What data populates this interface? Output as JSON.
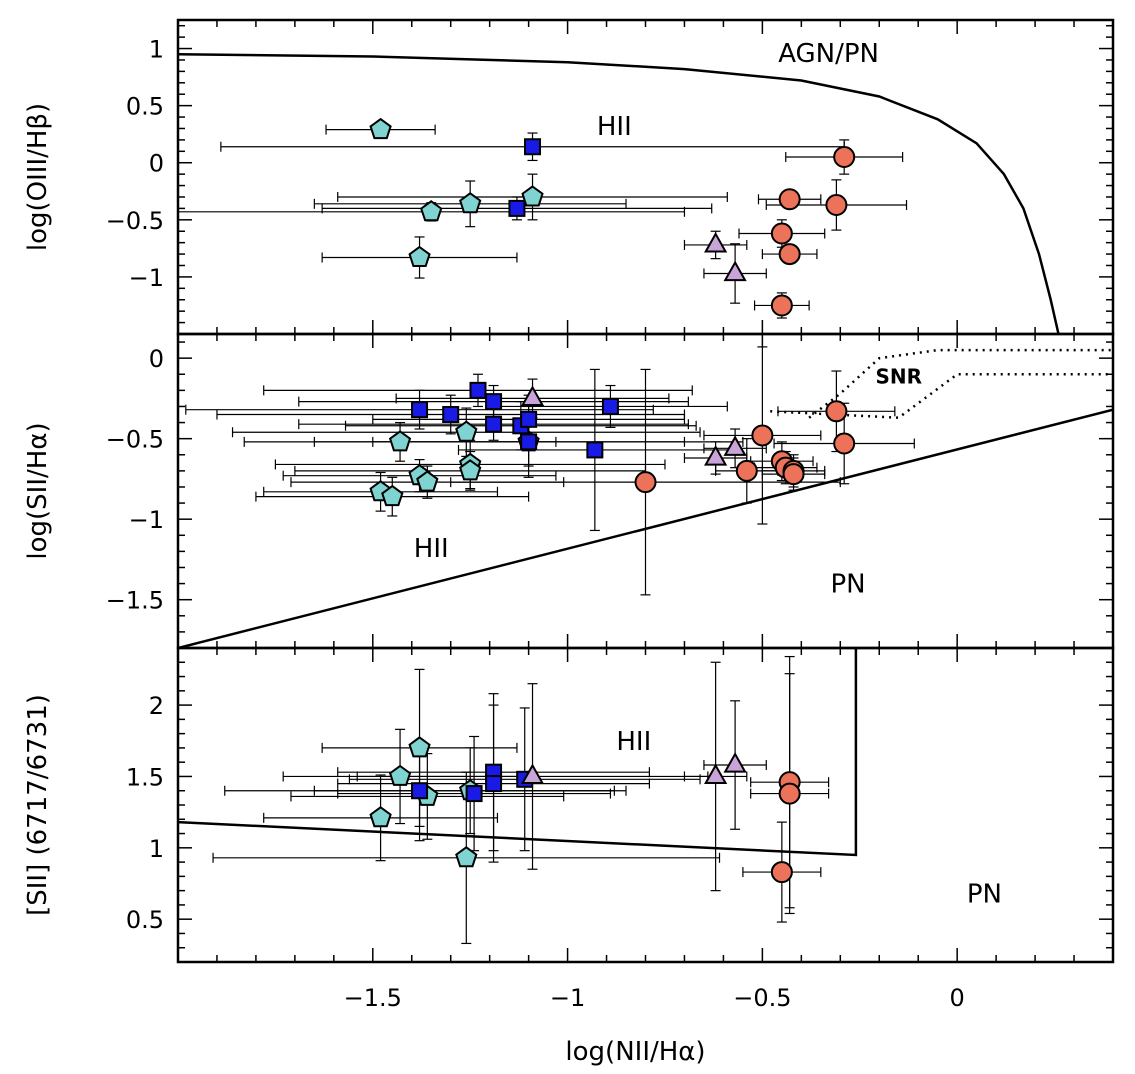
{
  "colors": {
    "hii_pentagon": "#7fd3d1",
    "square": "#1a1ae6",
    "triangle": "#c9a4d9",
    "circle": "#ec735a",
    "line": "#000000"
  },
  "chart_data": [
    {
      "type": "scatter",
      "panel": "top",
      "xlabel": "",
      "ylabel": "log(OIII/Hβ)",
      "xlim": [
        -2.0,
        0.4
      ],
      "ylim": [
        -1.5,
        1.25
      ],
      "x_ticks": [],
      "y_ticks": [
        "1",
        "0.5",
        "0",
        "−0.5",
        "−1"
      ],
      "y_tick_values": [
        1,
        0.5,
        0,
        -0.5,
        -1
      ],
      "annotations": [
        {
          "text": "AGN/PN",
          "x": -0.33,
          "y": 0.96
        },
        {
          "text": "HII",
          "x": -0.88,
          "y": 0.32
        }
      ],
      "curve": {
        "name": "",
        "style": "solid",
        "points": [
          [
            -2.0,
            0.95
          ],
          [
            -1.5,
            0.93
          ],
          [
            -1.0,
            0.88
          ],
          [
            -0.7,
            0.82
          ],
          [
            -0.4,
            0.72
          ],
          [
            -0.2,
            0.58
          ],
          [
            -0.05,
            0.38
          ],
          [
            0.05,
            0.17
          ],
          [
            0.12,
            -0.1
          ],
          [
            0.17,
            -0.4
          ],
          [
            0.21,
            -0.8
          ],
          [
            0.24,
            -1.2
          ],
          [
            0.26,
            -1.5
          ]
        ]
      },
      "series": [
        {
          "marker": "pentagon",
          "color": "#7fd3d1",
          "points": [
            {
              "x": -1.48,
              "y": 0.29,
              "xerr": 0.14,
              "yerr": 0.03
            },
            {
              "x": -1.38,
              "y": -0.83,
              "xerr": 0.25,
              "yerr": 0.18
            },
            {
              "x": -1.35,
              "y": -0.43,
              "xerr": 0.65,
              "yerr": 0.08
            },
            {
              "x": -1.25,
              "y": -0.36,
              "xerr": 0.4,
              "yerr": 0.2
            },
            {
              "x": -1.09,
              "y": -0.3,
              "xerr": 0.5,
              "yerr": 0.2
            }
          ]
        },
        {
          "marker": "square",
          "color": "#1a1ae6",
          "points": [
            {
              "x": -1.09,
              "y": 0.14,
              "xerr": 0.8,
              "yerr": 0.12
            },
            {
              "x": -1.13,
              "y": -0.4,
              "xerr": 0.5,
              "yerr": 0.1
            }
          ]
        },
        {
          "marker": "triangle",
          "color": "#c9a4d9",
          "points": [
            {
              "x": -0.62,
              "y": -0.72,
              "xerr": 0.08,
              "yerr": 0.12
            },
            {
              "x": -0.57,
              "y": -0.97,
              "xerr": 0.08,
              "yerr": 0.26
            }
          ]
        },
        {
          "marker": "circle",
          "color": "#ec735a",
          "points": [
            {
              "x": -0.29,
              "y": 0.05,
              "xerr": 0.15,
              "yerr": 0.15
            },
            {
              "x": -0.43,
              "y": -0.32,
              "xerr": 0.08,
              "yerr": 0.08
            },
            {
              "x": -0.31,
              "y": -0.37,
              "xerr": 0.18,
              "yerr": 0.22
            },
            {
              "x": -0.45,
              "y": -0.62,
              "xerr": 0.11,
              "yerr": 0.12
            },
            {
              "x": -0.43,
              "y": -0.8,
              "xerr": 0.07,
              "yerr": 0.07
            },
            {
              "x": -0.45,
              "y": -1.25,
              "xerr": 0.07,
              "yerr": 0.11
            }
          ]
        }
      ]
    },
    {
      "type": "scatter",
      "panel": "middle",
      "xlabel": "",
      "ylabel": "log(SII/Hα)",
      "xlim": [
        -2.0,
        0.4
      ],
      "ylim": [
        -1.8,
        0.15
      ],
      "x_ticks": [],
      "y_ticks": [
        "0",
        "−0.5",
        "−1",
        "−1.5"
      ],
      "y_tick_values": [
        0,
        -0.5,
        -1,
        -1.5
      ],
      "annotations": [
        {
          "text": "SNR",
          "x": -0.15,
          "y": -0.1
        },
        {
          "text": "HII",
          "x": -1.35,
          "y": -1.18
        },
        {
          "text": "PN",
          "x": -0.28,
          "y": -1.4
        }
      ],
      "lines": [
        {
          "style": "solid",
          "points": [
            [
              -2.0,
              -1.8
            ],
            [
              0.4,
              -0.32
            ]
          ]
        },
        {
          "style": "dotted",
          "points": [
            [
              -0.38,
              -0.37
            ],
            [
              -0.3,
              -0.22
            ],
            [
              -0.2,
              0.0
            ],
            [
              -0.05,
              0.05
            ],
            [
              0.4,
              0.05
            ]
          ]
        },
        {
          "style": "dotted",
          "points": [
            [
              -0.48,
              -0.33
            ],
            [
              -0.15,
              -0.37
            ],
            [
              0.0,
              -0.1
            ],
            [
              0.4,
              -0.1
            ]
          ]
        }
      ],
      "series": [
        {
          "marker": "pentagon",
          "color": "#7fd3d1",
          "points": [
            {
              "x": -1.43,
              "y": -0.52,
              "xerr": 0.4,
              "yerr": 0.12
            },
            {
              "x": -1.26,
              "y": -0.46,
              "xerr": 0.6,
              "yerr": 0.15
            },
            {
              "x": -1.25,
              "y": -0.66,
              "xerr": 0.5,
              "yerr": 0.15
            },
            {
              "x": -1.25,
              "y": -0.7,
              "xerr": 0.45,
              "yerr": 0.12
            },
            {
              "x": -1.1,
              "y": -0.52,
              "xerr": 0.55,
              "yerr": 0.22
            },
            {
              "x": -1.38,
              "y": -0.73,
              "xerr": 0.35,
              "yerr": 0.1
            },
            {
              "x": -1.36,
              "y": -0.77,
              "xerr": 0.35,
              "yerr": 0.1
            },
            {
              "x": -1.48,
              "y": -0.83,
              "xerr": 0.3,
              "yerr": 0.12
            },
            {
              "x": -1.45,
              "y": -0.86,
              "xerr": 0.35,
              "yerr": 0.12
            }
          ]
        },
        {
          "marker": "square",
          "color": "#1a1ae6",
          "points": [
            {
              "x": -1.38,
              "y": -0.32,
              "xerr": 0.6,
              "yerr": 0.12
            },
            {
              "x": -1.3,
              "y": -0.35,
              "xerr": 0.6,
              "yerr": 0.12
            },
            {
              "x": -1.23,
              "y": -0.2,
              "xerr": 0.55,
              "yerr": 0.1
            },
            {
              "x": -1.19,
              "y": -0.27,
              "xerr": 0.5,
              "yerr": 0.1
            },
            {
              "x": -1.19,
              "y": -0.41,
              "xerr": 0.5,
              "yerr": 0.1
            },
            {
              "x": -1.12,
              "y": -0.42,
              "xerr": 0.45,
              "yerr": 0.15
            },
            {
              "x": -1.1,
              "y": -0.38,
              "xerr": 0.4,
              "yerr": 0.15
            },
            {
              "x": -1.1,
              "y": -0.52,
              "xerr": 0.4,
              "yerr": 0.15
            },
            {
              "x": -0.89,
              "y": -0.3,
              "xerr": 0.3,
              "yerr": 0.13
            },
            {
              "x": -0.93,
              "y": -0.57,
              "xerr": 0.35,
              "yerr": 0.5
            }
          ]
        },
        {
          "marker": "triangle",
          "color": "#c9a4d9",
          "points": [
            {
              "x": -1.09,
              "y": -0.25,
              "xerr": 0.35,
              "yerr": 0.12
            },
            {
              "x": -0.62,
              "y": -0.62,
              "xerr": 0.08,
              "yerr": 0.1
            },
            {
              "x": -0.57,
              "y": -0.56,
              "xerr": 0.08,
              "yerr": 0.12
            }
          ]
        },
        {
          "marker": "circle",
          "color": "#ec735a",
          "points": [
            {
              "x": -0.8,
              "y": -0.77,
              "xerr": 0.5,
              "yerr": 0.7
            },
            {
              "x": -0.5,
              "y": -0.48,
              "xerr": 0.15,
              "yerr": 0.55
            },
            {
              "x": -0.54,
              "y": -0.7,
              "xerr": 0.08,
              "yerr": 0.2
            },
            {
              "x": -0.45,
              "y": -0.64,
              "xerr": 0.08,
              "yerr": 0.12
            },
            {
              "x": -0.44,
              "y": -0.68,
              "xerr": 0.08,
              "yerr": 0.1
            },
            {
              "x": -0.42,
              "y": -0.7,
              "xerr": 0.08,
              "yerr": 0.1
            },
            {
              "x": -0.42,
              "y": -0.72,
              "xerr": 0.08,
              "yerr": 0.1
            },
            {
              "x": -0.31,
              "y": -0.33,
              "xerr": 0.15,
              "yerr": 0.25
            },
            {
              "x": -0.29,
              "y": -0.53,
              "xerr": 0.18,
              "yerr": 0.25
            }
          ]
        }
      ]
    },
    {
      "type": "scatter",
      "panel": "bottom",
      "xlabel": "log(NII/Hα)",
      "ylabel": "[SII] (6717/6731)",
      "xlim": [
        -2.0,
        0.4
      ],
      "ylim": [
        0.2,
        2.4
      ],
      "x_ticks": [
        "−1.5",
        "−1",
        "−0.5",
        "0"
      ],
      "x_tick_values": [
        -1.5,
        -1,
        -0.5,
        0
      ],
      "y_ticks": [
        "2",
        "1.5",
        "1",
        "0.5"
      ],
      "y_tick_values": [
        2,
        1.5,
        1,
        0.5
      ],
      "annotations": [
        {
          "text": "HII",
          "x": -0.83,
          "y": 1.75
        },
        {
          "text": "PN",
          "x": 0.07,
          "y": 0.68
        }
      ],
      "lines": [
        {
          "style": "solid",
          "points": [
            [
              -2.0,
              1.18
            ],
            [
              -0.26,
              0.95
            ],
            [
              -0.26,
              2.4
            ]
          ]
        }
      ],
      "series": [
        {
          "marker": "pentagon",
          "color": "#7fd3d1",
          "points": [
            {
              "x": -1.38,
              "y": 1.7,
              "xerr": 0.25,
              "yerr": 0.55
            },
            {
              "x": -1.43,
              "y": 1.5,
              "xerr": 0.3,
              "yerr": 0.33
            },
            {
              "x": -1.36,
              "y": 1.36,
              "xerr": 0.35,
              "yerr": 0.3
            },
            {
              "x": -1.25,
              "y": 1.4,
              "xerr": 0.4,
              "yerr": 0.3
            },
            {
              "x": -1.48,
              "y": 1.21,
              "xerr": 0.3,
              "yerr": 0.3
            },
            {
              "x": -1.26,
              "y": 0.93,
              "xerr": 0.65,
              "yerr": 0.6
            }
          ]
        },
        {
          "marker": "square",
          "color": "#1a1ae6",
          "points": [
            {
              "x": -1.38,
              "y": 1.4,
              "xerr": 0.5,
              "yerr": 0.35
            },
            {
              "x": -1.24,
              "y": 1.38,
              "xerr": 0.35,
              "yerr": 0.4
            },
            {
              "x": -1.19,
              "y": 1.53,
              "xerr": 0.4,
              "yerr": 0.55
            },
            {
              "x": -1.19,
              "y": 1.45,
              "xerr": 0.4,
              "yerr": 0.55
            },
            {
              "x": -1.11,
              "y": 1.48,
              "xerr": 0.45,
              "yerr": 0.5
            }
          ]
        },
        {
          "marker": "triangle",
          "color": "#c9a4d9",
          "points": [
            {
              "x": -1.09,
              "y": 1.5,
              "xerr": 0.45,
              "yerr": 0.65
            },
            {
              "x": -0.62,
              "y": 1.5,
              "xerr": 0.08,
              "yerr": 0.8
            },
            {
              "x": -0.57,
              "y": 1.58,
              "xerr": 0.08,
              "yerr": 0.45
            }
          ]
        },
        {
          "marker": "circle",
          "color": "#ec735a",
          "points": [
            {
              "x": -0.43,
              "y": 1.46,
              "xerr": 0.1,
              "yerr": 0.88
            },
            {
              "x": -0.43,
              "y": 1.38,
              "xerr": 0.1,
              "yerr": 0.84
            },
            {
              "x": -0.45,
              "y": 0.83,
              "xerr": 0.1,
              "yerr": 0.35
            }
          ]
        }
      ]
    }
  ]
}
